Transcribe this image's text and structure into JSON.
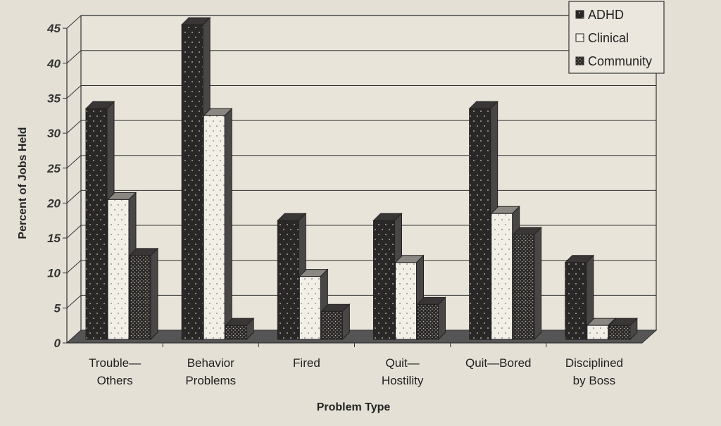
{
  "chart_data": {
    "type": "bar",
    "title": "",
    "xlabel": "Problem Type",
    "ylabel": "Percent of Jobs Held",
    "ylim": [
      0,
      45
    ],
    "yticks": [
      0,
      5,
      10,
      15,
      20,
      25,
      30,
      35,
      40,
      45
    ],
    "grid": true,
    "legend_position": "top-right",
    "style": "3d",
    "categories": [
      [
        "Trouble—",
        "Others"
      ],
      [
        "Behavior",
        "Problems"
      ],
      [
        "Fired"
      ],
      [
        "Quit—",
        "Hostility"
      ],
      [
        "Quit—Bored"
      ],
      [
        "Disciplined",
        "by Boss"
      ]
    ],
    "series": [
      {
        "name": "ADHD",
        "values": [
          33,
          45,
          17,
          17,
          33,
          11
        ],
        "color": "#2a2727",
        "pattern": "sparse-dots"
      },
      {
        "name": "Clinical",
        "values": [
          20,
          32,
          9,
          11,
          18,
          2
        ],
        "color": "#f2efe6",
        "pattern": "sparse-dots"
      },
      {
        "name": "Community",
        "values": [
          12,
          2,
          4,
          5,
          15,
          2
        ],
        "color": "#2a2727",
        "pattern": "dense-dots"
      }
    ]
  }
}
